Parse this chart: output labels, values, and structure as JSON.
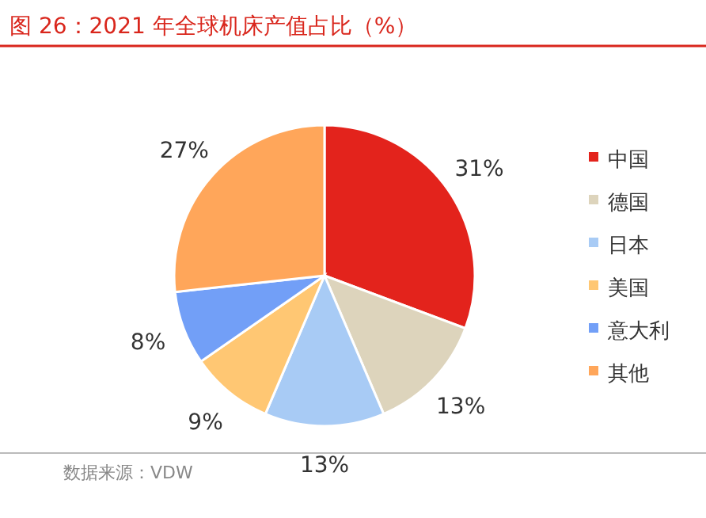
{
  "chart_data": {
    "type": "pie",
    "title": "图 26：2021 年全球机床产值占比（%）",
    "categories": [
      "中国",
      "德国",
      "日本",
      "美国",
      "意大利",
      "其他"
    ],
    "values": [
      31,
      13,
      13,
      9,
      8,
      27
    ],
    "value_labels": [
      "31%",
      "13%",
      "13%",
      "9%",
      "8%",
      "27%"
    ],
    "colors": [
      "#e3231c",
      "#ddd4bc",
      "#a8cbf5",
      "#ffc773",
      "#729ff7",
      "#ffa65a"
    ],
    "legend": "right",
    "annotations": [
      "数据来源：VDW"
    ]
  }
}
